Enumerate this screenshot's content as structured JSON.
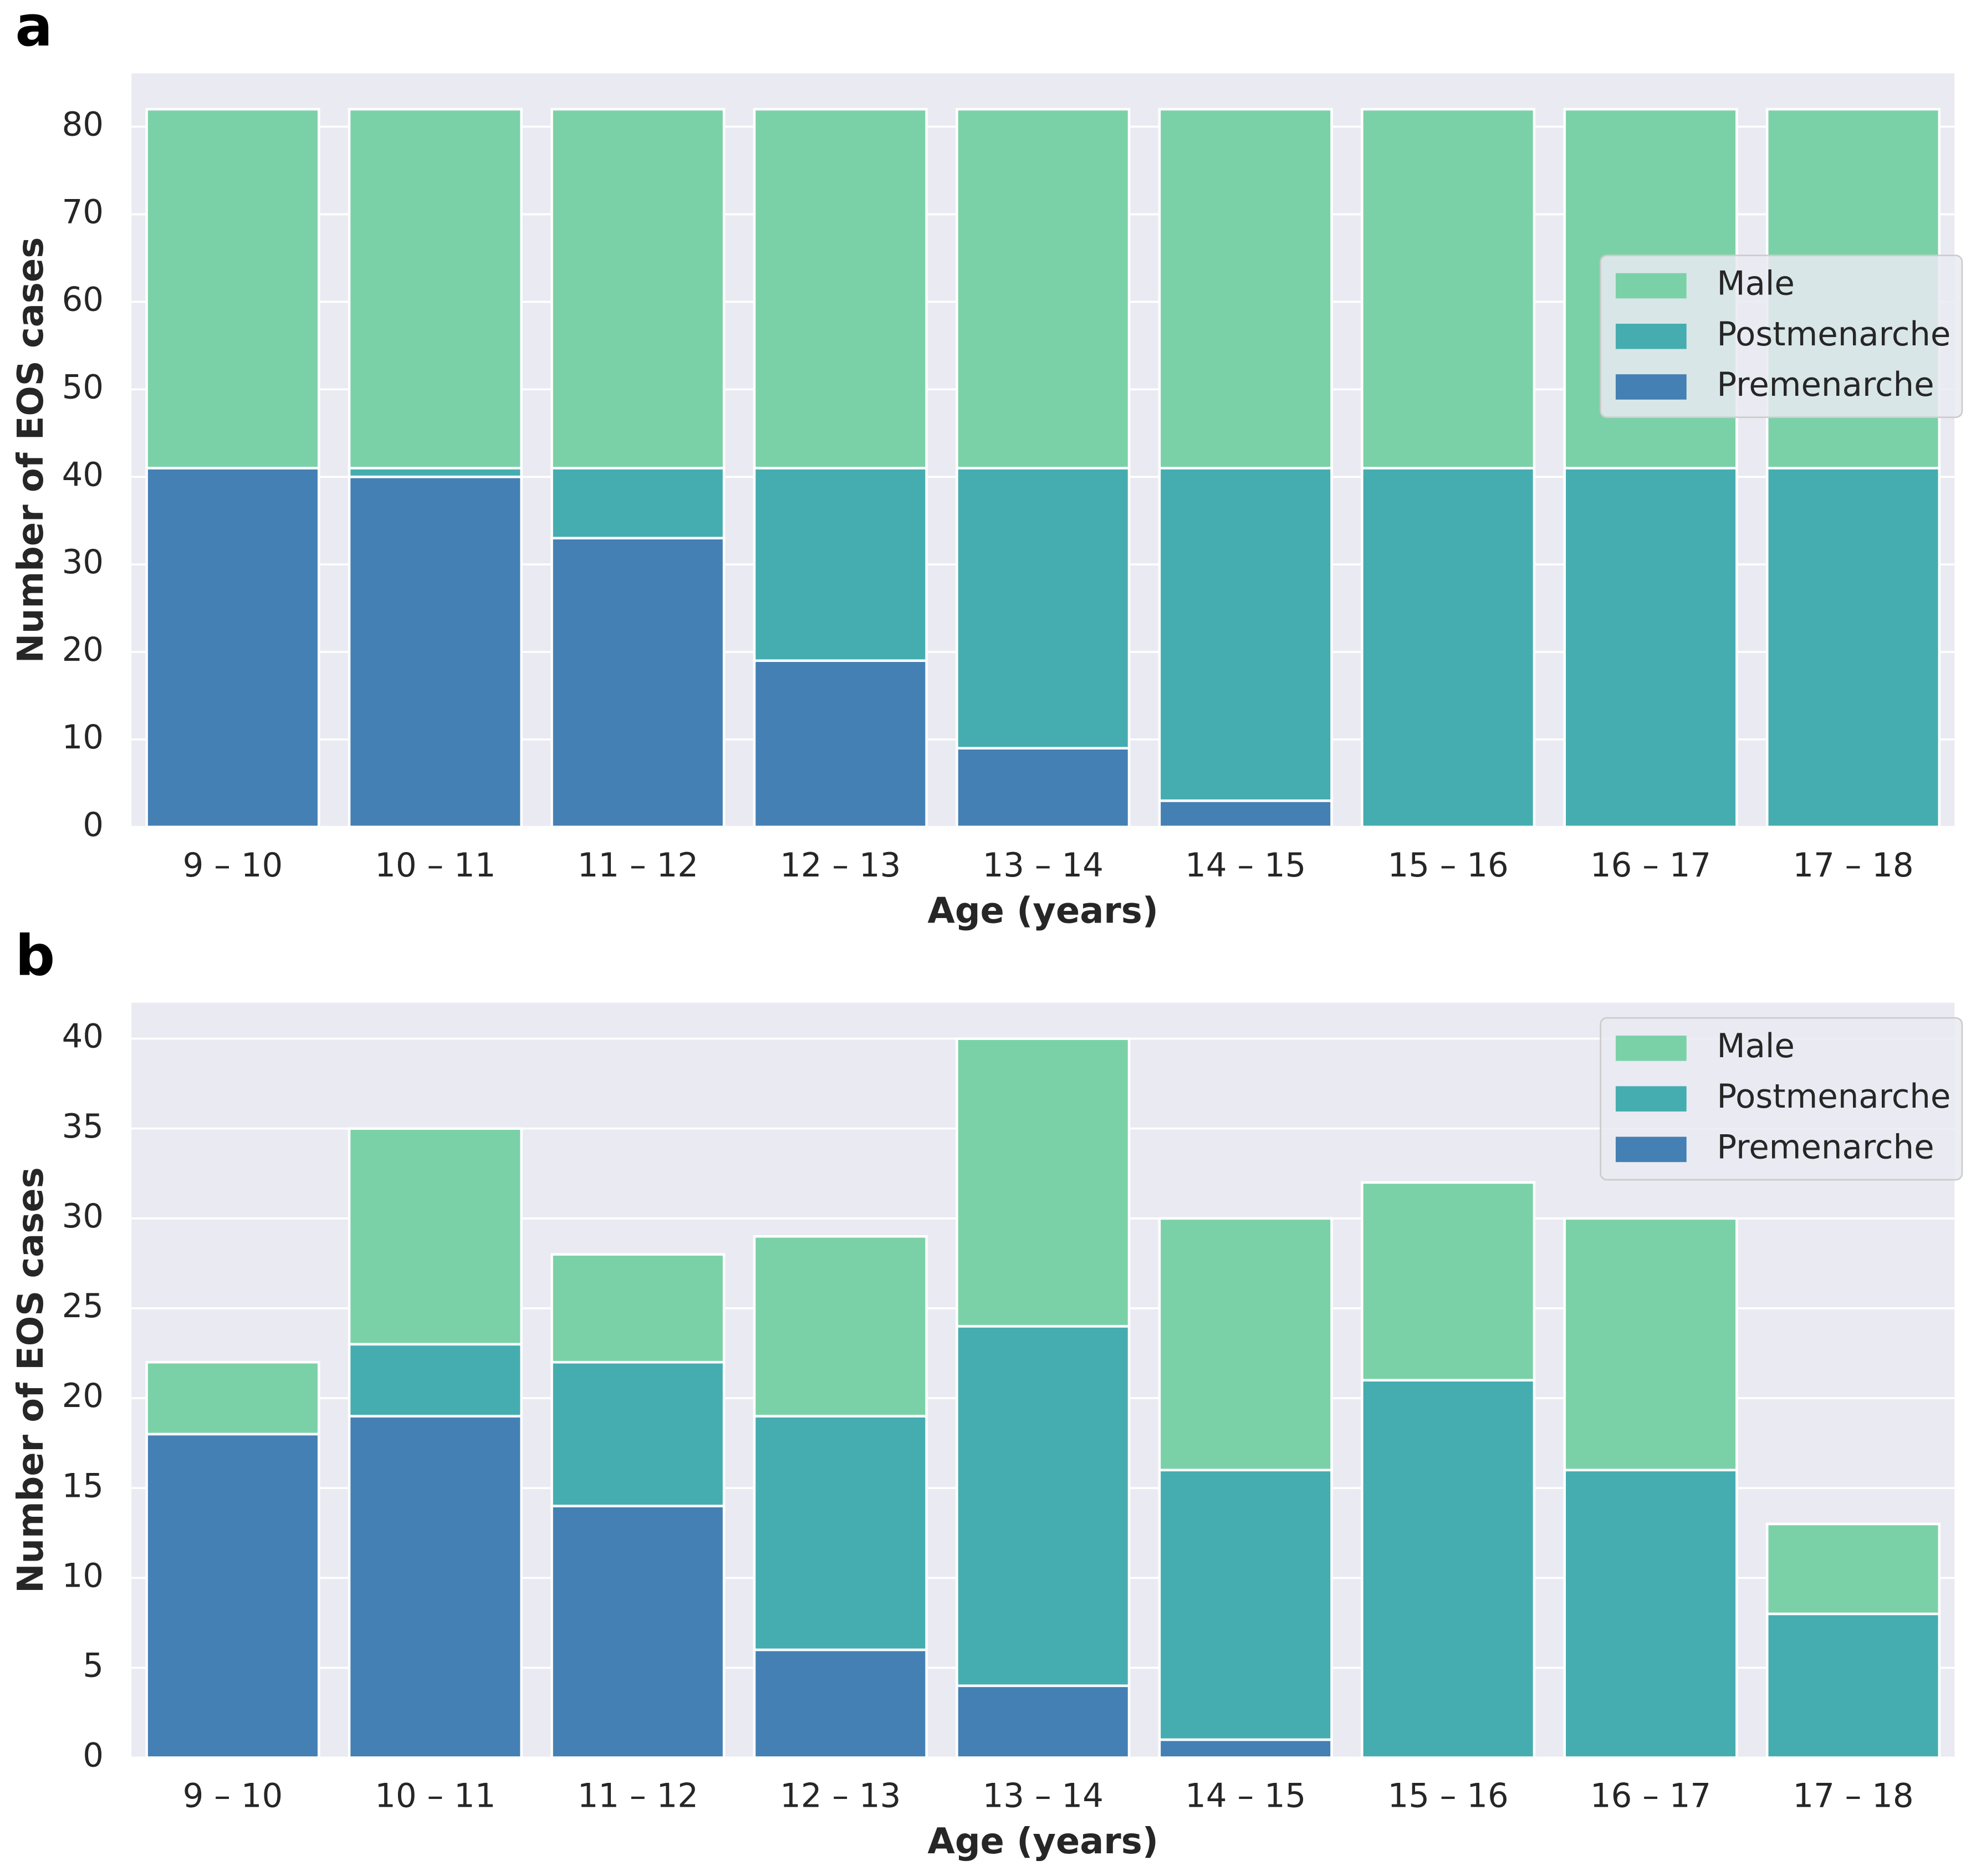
{
  "chart_data": [
    {
      "type": "stacked_bar",
      "panel_label": "a",
      "xlabel": "Age (years)",
      "ylabel": "Number of EOS cases",
      "categories": [
        "9 – 10",
        "10 – 11",
        "11 – 12",
        "12 – 13",
        "13 – 14",
        "14 – 15",
        "15 – 16",
        "16 – 17",
        "17 – 18"
      ],
      "series": [
        {
          "name": "Premenarche",
          "color": "#4480b3",
          "values": [
            41,
            40,
            33,
            19,
            9,
            3,
            0,
            0,
            0
          ]
        },
        {
          "name": "Postmenarche",
          "color": "#45adb0",
          "values": [
            0,
            1,
            8,
            22,
            32,
            38,
            41,
            41,
            41
          ]
        },
        {
          "name": "Male",
          "color": "#7bd1a7",
          "values": [
            41,
            41,
            41,
            41,
            41,
            41,
            41,
            41,
            41
          ]
        }
      ],
      "ylim": [
        0,
        86.1
      ],
      "yticks": [
        0,
        10,
        20,
        30,
        40,
        50,
        60,
        70,
        80
      ],
      "grid": true,
      "legend": "center right"
    },
    {
      "type": "stacked_bar",
      "panel_label": "b",
      "xlabel": "Age (years)",
      "ylabel": "Number of EOS cases",
      "categories": [
        "9 – 10",
        "10 – 11",
        "11 – 12",
        "12 – 13",
        "13 – 14",
        "14 – 15",
        "15 – 16",
        "16 – 17",
        "17 – 18"
      ],
      "series": [
        {
          "name": "Premenarche",
          "color": "#4480b3",
          "values": [
            18,
            19,
            14,
            6,
            4,
            1,
            0,
            0,
            0
          ]
        },
        {
          "name": "Postmenarche",
          "color": "#45adb0",
          "values": [
            0,
            4,
            8,
            13,
            20,
            15,
            21,
            16,
            8
          ]
        },
        {
          "name": "Male",
          "color": "#7bd1a7",
          "values": [
            4,
            12,
            6,
            10,
            16,
            14,
            11,
            14,
            5
          ]
        }
      ],
      "ylim": [
        0,
        42
      ],
      "yticks": [
        0,
        5,
        10,
        15,
        20,
        25,
        30,
        35,
        40
      ],
      "grid": true,
      "legend": "upper right"
    }
  ]
}
